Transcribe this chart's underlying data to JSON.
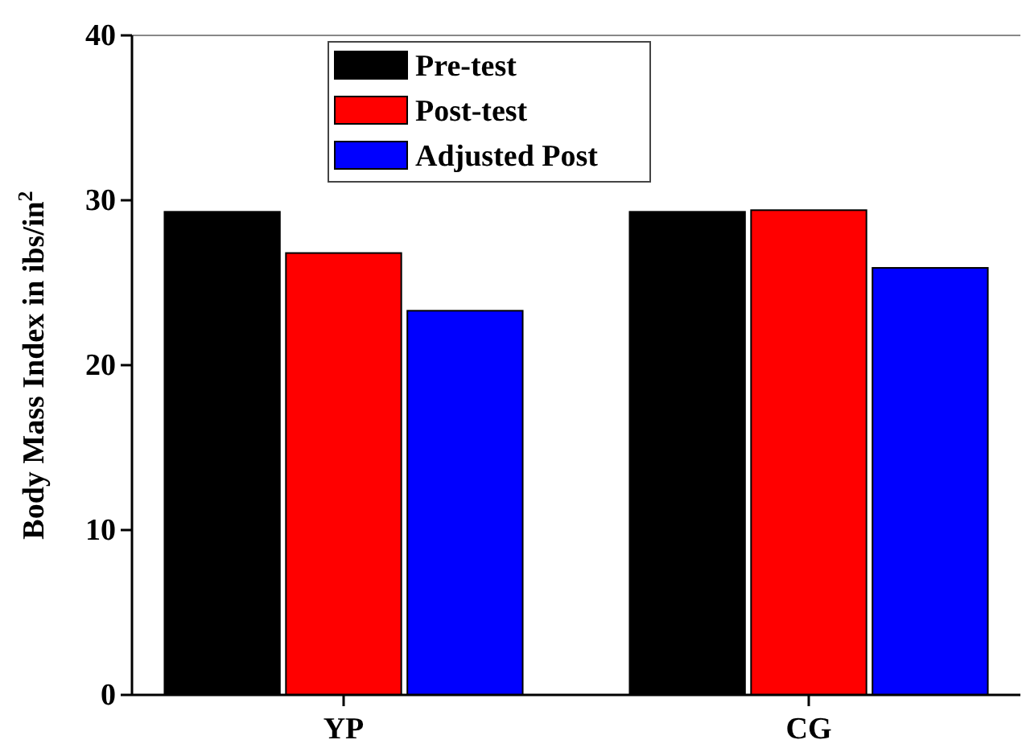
{
  "chart_data": {
    "type": "bar",
    "ylabel": "Body Mass Index in ibs/in$^{2}$",
    "categories": [
      "YP",
      "CG"
    ],
    "series": [
      {
        "name": "Pre-test",
        "color": "#000000",
        "values": [
          29.3,
          29.3
        ]
      },
      {
        "name": "Post-test",
        "color": "#ff0000",
        "values": [
          26.8,
          29.4
        ]
      },
      {
        "name": "Adjusted Post",
        "color": "#0000ff",
        "values": [
          23.3,
          25.9
        ]
      }
    ],
    "ylim": [
      0,
      40
    ],
    "yticks": [
      0,
      10,
      20,
      30,
      40
    ],
    "legend": "top left",
    "grid": false
  }
}
